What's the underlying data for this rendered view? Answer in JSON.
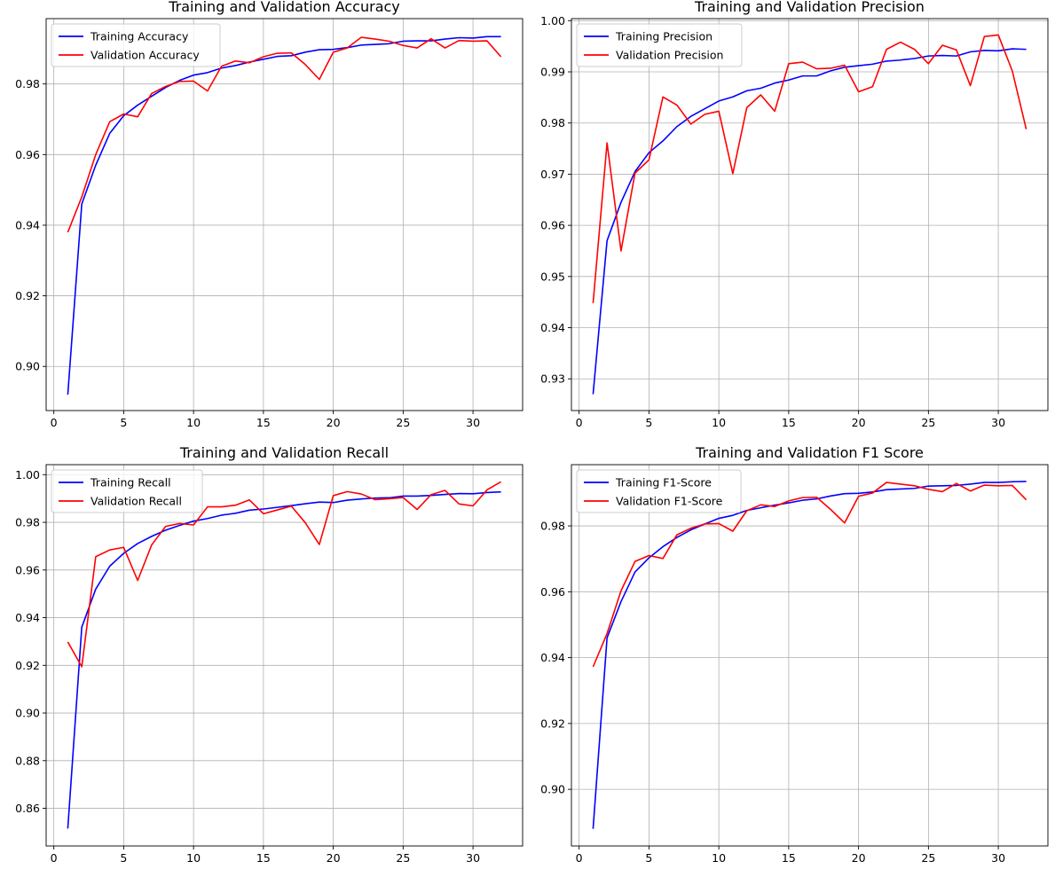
{
  "chart_data": [
    {
      "type": "line",
      "title": "Training and Validation Accuracy",
      "xlabel": "",
      "ylabel": "",
      "xlim": [
        -0.55,
        33.55
      ],
      "ylim": [
        0.8875,
        0.9985
      ],
      "xticks": [
        0,
        5,
        10,
        15,
        20,
        25,
        30
      ],
      "yticks": [
        0.9,
        0.92,
        0.94,
        0.96,
        0.98
      ],
      "ytick_labels": [
        "0.90",
        "0.92",
        "0.94",
        "0.96",
        "0.98"
      ],
      "grid": true,
      "legend_position": "upper-left",
      "x": [
        1,
        2,
        3,
        4,
        5,
        6,
        7,
        8,
        9,
        10,
        11,
        12,
        13,
        14,
        15,
        16,
        17,
        18,
        19,
        20,
        21,
        22,
        23,
        24,
        25,
        26,
        27,
        28,
        29,
        30,
        31,
        32
      ],
      "series": [
        {
          "name": "Training Accuracy",
          "color": "#0000ff",
          "values": [
            0.892,
            0.946,
            0.957,
            0.966,
            0.971,
            0.974,
            0.9765,
            0.979,
            0.981,
            0.9825,
            0.9832,
            0.9845,
            0.9852,
            0.9862,
            0.987,
            0.9878,
            0.988,
            0.989,
            0.9897,
            0.9898,
            0.9903,
            0.991,
            0.9912,
            0.9914,
            0.9921,
            0.9922,
            0.9922,
            0.9927,
            0.9931,
            0.993,
            0.9934,
            0.9934
          ]
        },
        {
          "name": "Validation Accuracy",
          "color": "#ff0000",
          "values": [
            0.938,
            0.948,
            0.96,
            0.9693,
            0.9715,
            0.9707,
            0.9773,
            0.9793,
            0.9807,
            0.9808,
            0.978,
            0.985,
            0.9865,
            0.986,
            0.9877,
            0.9887,
            0.9888,
            0.9855,
            0.9813,
            0.989,
            0.9902,
            0.9932,
            0.9927,
            0.9921,
            0.9909,
            0.9902,
            0.9928,
            0.9902,
            0.9923,
            0.9921,
            0.9922,
            0.9877
          ]
        }
      ]
    },
    {
      "type": "line",
      "title": "Training and Validation Precision",
      "xlabel": "",
      "ylabel": "",
      "xlim": [
        -0.55,
        33.55
      ],
      "ylim": [
        0.9238,
        1.0004
      ],
      "xticks": [
        0,
        5,
        10,
        15,
        20,
        25,
        30
      ],
      "yticks": [
        0.93,
        0.94,
        0.95,
        0.96,
        0.97,
        0.98,
        0.99,
        1.0
      ],
      "ytick_labels": [
        "0.93",
        "0.94",
        "0.95",
        "0.96",
        "0.97",
        "0.98",
        "0.99",
        "1.00"
      ],
      "grid": true,
      "legend_position": "upper-left",
      "x": [
        1,
        2,
        3,
        4,
        5,
        6,
        7,
        8,
        9,
        10,
        11,
        12,
        13,
        14,
        15,
        16,
        17,
        18,
        19,
        20,
        21,
        22,
        23,
        24,
        25,
        26,
        27,
        28,
        29,
        30,
        31,
        32
      ],
      "series": [
        {
          "name": "Training Precision",
          "color": "#0000ff",
          "values": [
            0.927,
            0.957,
            0.9645,
            0.9705,
            0.9742,
            0.9765,
            0.9793,
            0.9813,
            0.9828,
            0.9843,
            0.9851,
            0.9863,
            0.9868,
            0.9878,
            0.9884,
            0.9892,
            0.9892,
            0.9902,
            0.9909,
            0.9912,
            0.9915,
            0.9921,
            0.9923,
            0.9926,
            0.9931,
            0.9932,
            0.9931,
            0.9939,
            0.9942,
            0.9941,
            0.9945,
            0.9944
          ]
        },
        {
          "name": "Validation Precision",
          "color": "#ff0000",
          "values": [
            0.9448,
            0.9761,
            0.955,
            0.9702,
            0.9728,
            0.9851,
            0.9835,
            0.9798,
            0.9817,
            0.9823,
            0.9701,
            0.983,
            0.9855,
            0.9823,
            0.9916,
            0.9919,
            0.9906,
            0.9907,
            0.9913,
            0.9861,
            0.9871,
            0.9944,
            0.9958,
            0.9944,
            0.9916,
            0.9952,
            0.9943,
            0.9873,
            0.9969,
            0.9972,
            0.9902,
            0.9788
          ]
        }
      ]
    },
    {
      "type": "line",
      "title": "Training and Validation Recall",
      "xlabel": "",
      "ylabel": "",
      "xlim": [
        -0.55,
        33.55
      ],
      "ylim": [
        0.8442,
        1.0042
      ],
      "xticks": [
        0,
        5,
        10,
        15,
        20,
        25,
        30
      ],
      "yticks": [
        0.86,
        0.88,
        0.9,
        0.92,
        0.94,
        0.96,
        0.98,
        1.0
      ],
      "ytick_labels": [
        "0.86",
        "0.88",
        "0.90",
        "0.92",
        "0.94",
        "0.96",
        "0.98",
        "1.00"
      ],
      "grid": true,
      "legend_position": "upper-left",
      "x": [
        1,
        2,
        3,
        4,
        5,
        6,
        7,
        8,
        9,
        10,
        11,
        12,
        13,
        14,
        15,
        16,
        17,
        18,
        19,
        20,
        21,
        22,
        23,
        24,
        25,
        26,
        27,
        28,
        29,
        30,
        31,
        32
      ],
      "series": [
        {
          "name": "Training Recall",
          "color": "#0000ff",
          "values": [
            0.8515,
            0.936,
            0.952,
            0.9616,
            0.967,
            0.9711,
            0.9741,
            0.9767,
            0.9787,
            0.9805,
            0.9816,
            0.983,
            0.9838,
            0.9851,
            0.9856,
            0.9863,
            0.987,
            0.9878,
            0.9885,
            0.9883,
            0.9893,
            0.9898,
            0.9902,
            0.9903,
            0.991,
            0.991,
            0.9913,
            0.9917,
            0.9921,
            0.992,
            0.9925,
            0.9928
          ]
        },
        {
          "name": "Validation Recall",
          "color": "#ff0000",
          "values": [
            0.9298,
            0.9194,
            0.9656,
            0.9684,
            0.9695,
            0.9556,
            0.9705,
            0.9783,
            0.9795,
            0.9789,
            0.9865,
            0.9865,
            0.9872,
            0.9894,
            0.9836,
            0.9852,
            0.9868,
            0.9798,
            0.9707,
            0.9912,
            0.9929,
            0.9919,
            0.9895,
            0.9899,
            0.9904,
            0.9854,
            0.9916,
            0.9934,
            0.9877,
            0.9869,
            0.9936,
            0.997
          ]
        }
      ]
    },
    {
      "type": "line",
      "title": "Training and Validation F1 Score",
      "xlabel": "",
      "ylabel": "",
      "xlim": [
        -0.55,
        33.55
      ],
      "ylim": [
        0.8828,
        0.9986
      ],
      "xticks": [
        0,
        5,
        10,
        15,
        20,
        25,
        30
      ],
      "yticks": [
        0.9,
        0.92,
        0.94,
        0.96,
        0.98
      ],
      "ytick_labels": [
        "0.90",
        "0.92",
        "0.94",
        "0.96",
        "0.98"
      ],
      "grid": true,
      "legend_position": "upper-left",
      "x": [
        1,
        2,
        3,
        4,
        5,
        6,
        7,
        8,
        9,
        10,
        11,
        12,
        13,
        14,
        15,
        16,
        17,
        18,
        19,
        20,
        21,
        22,
        23,
        24,
        25,
        26,
        27,
        28,
        29,
        30,
        31,
        32
      ],
      "series": [
        {
          "name": "Training F1-Score",
          "color": "#0000ff",
          "values": [
            0.888,
            0.946,
            0.957,
            0.966,
            0.9703,
            0.9737,
            0.9765,
            0.9788,
            0.9806,
            0.9823,
            0.9832,
            0.9847,
            0.9855,
            0.9863,
            0.987,
            0.9878,
            0.9882,
            0.9891,
            0.9898,
            0.9899,
            0.9903,
            0.991,
            0.9912,
            0.9914,
            0.9921,
            0.9922,
            0.9923,
            0.9927,
            0.9932,
            0.9932,
            0.9934,
            0.9935
          ]
        },
        {
          "name": "Validation F1-Score",
          "color": "#ff0000",
          "values": [
            0.9372,
            0.9473,
            0.9603,
            0.9692,
            0.971,
            0.9701,
            0.9773,
            0.9793,
            0.9806,
            0.9807,
            0.9784,
            0.9846,
            0.9864,
            0.9859,
            0.9876,
            0.9886,
            0.9887,
            0.985,
            0.9809,
            0.989,
            0.99,
            0.9932,
            0.9927,
            0.9922,
            0.9911,
            0.9904,
            0.9929,
            0.9906,
            0.9924,
            0.9922,
            0.9923,
            0.9879
          ]
        }
      ]
    }
  ]
}
